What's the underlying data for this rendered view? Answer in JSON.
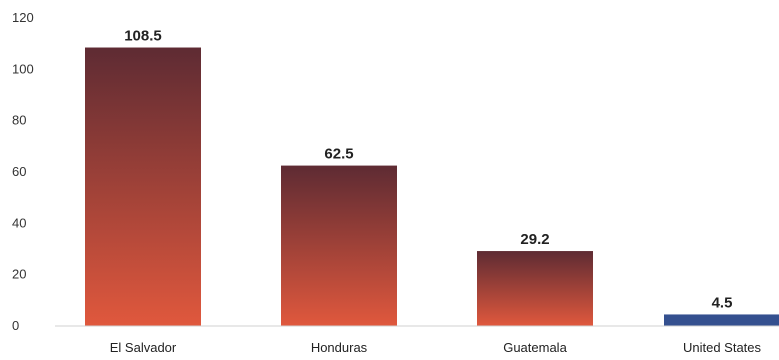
{
  "chart_data": {
    "type": "bar",
    "categories": [
      "El Salvador",
      "Honduras",
      "Guatemala",
      "United States"
    ],
    "values": [
      108.5,
      62.5,
      29.2,
      4.5
    ],
    "value_labels": [
      "108.5",
      "62.5",
      "29.2",
      "4.5"
    ],
    "yticks": [
      "0",
      "20",
      "40",
      "60",
      "80",
      "100",
      "120"
    ],
    "ylim": [
      0,
      120
    ],
    "grid": false,
    "colors": {
      "central_america_top": "#5e2b33",
      "central_america_bottom": "#e0583d",
      "united_states": "#34508f",
      "axis": "#d0d0d0"
    }
  }
}
